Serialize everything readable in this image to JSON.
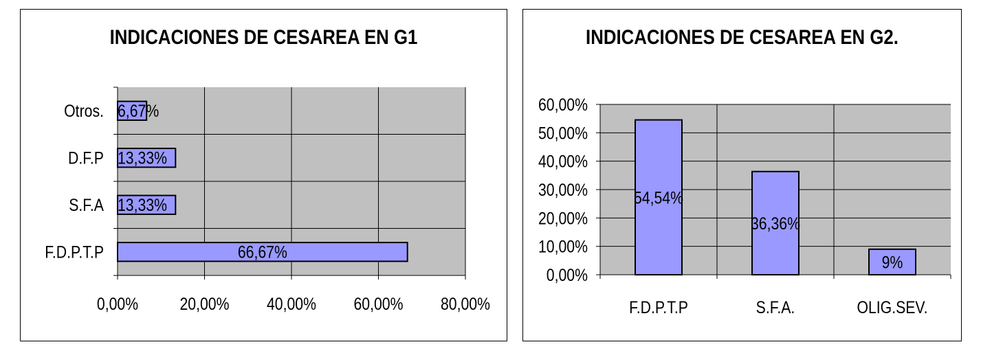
{
  "chart_data": [
    {
      "type": "bar",
      "orientation": "horizontal",
      "title": "INDICACIONES DE CESAREA EN G1",
      "categories": [
        "F.D.P.T.P",
        "S.F.A",
        "D.F.P",
        "Otros."
      ],
      "values": [
        66.67,
        13.33,
        13.33,
        6.67
      ],
      "data_labels": [
        "66,67%",
        "13,33%",
        "13,33%",
        "6,67%"
      ],
      "xlim": [
        0,
        80
      ],
      "x_ticks": [
        "0,00%",
        "20,00%",
        "40,00%",
        "60,00%",
        "80,00%"
      ],
      "grid": true,
      "plot_background": "#c0c0c0",
      "bar_color": "#9999ff"
    },
    {
      "type": "bar",
      "orientation": "vertical",
      "title": "INDICACIONES DE CESAREA EN G2.",
      "categories": [
        "F.D.P.T.P",
        "S.F.A.",
        "OLIG.SEV."
      ],
      "values": [
        54.54,
        36.36,
        9
      ],
      "data_labels": [
        "54,54%",
        "36,36%",
        "9%"
      ],
      "ylim": [
        0,
        60
      ],
      "y_ticks": [
        "0,00%",
        "10,00%",
        "20,00%",
        "30,00%",
        "40,00%",
        "50,00%",
        "60,00%"
      ],
      "grid": true,
      "plot_background": "#c0c0c0",
      "bar_color": "#9999ff"
    }
  ]
}
